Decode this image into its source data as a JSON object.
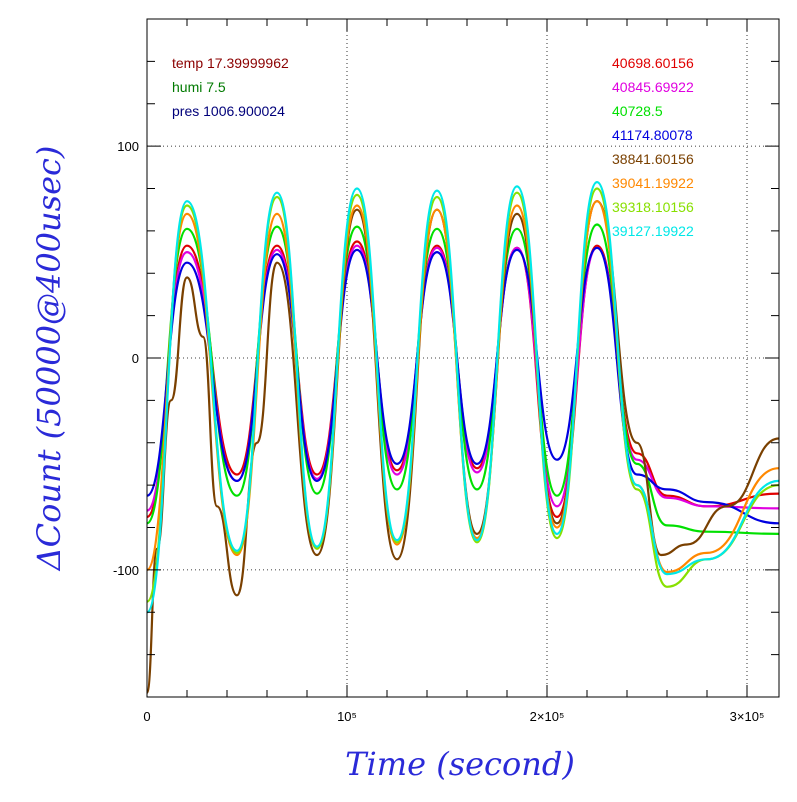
{
  "chart_data": {
    "type": "line",
    "xlabel": "Time (second)",
    "ylabel": "ΔCount (50000@400usec)",
    "xlim": [
      0,
      316000
    ],
    "ylim": [
      -160,
      160
    ],
    "xticks": [
      {
        "value": 0,
        "label": "0"
      },
      {
        "value": 100000,
        "label": "10⁵"
      },
      {
        "value": 200000,
        "label": "2×10⁵"
      },
      {
        "value": 300000,
        "label": "3×10⁵"
      }
    ],
    "yticks": [
      {
        "value": 100,
        "label": "100"
      },
      {
        "value": 0,
        "label": "0"
      },
      {
        "value": -100,
        "label": "-100"
      }
    ],
    "grid": "dotted at labeled ticks",
    "env_legend": [
      {
        "label": "temp 17.39999962",
        "color": "#8b0000"
      },
      {
        "label": "humi 7.5",
        "color": "#007a00"
      },
      {
        "label": "pres 1006.900024",
        "color": "#00007a"
      }
    ],
    "series": [
      {
        "name": "40698.60156",
        "color": "#e00000",
        "x": [
          0,
          20000,
          45000,
          65000,
          85000,
          105000,
          125000,
          145000,
          165000,
          185000,
          205000,
          225000,
          245000,
          260000,
          280000,
          316000
        ],
        "y": [
          -75,
          53,
          -55,
          53,
          -55,
          55,
          -53,
          53,
          -52,
          52,
          -75,
          53,
          -45,
          -65,
          -70,
          -64
        ]
      },
      {
        "name": "40845.69922",
        "color": "#e000e0",
        "x": [
          0,
          20000,
          45000,
          65000,
          85000,
          105000,
          125000,
          145000,
          165000,
          185000,
          205000,
          225000,
          245000,
          260000,
          280000,
          316000
        ],
        "y": [
          -72,
          50,
          -58,
          51,
          -57,
          53,
          -55,
          52,
          -54,
          52,
          -70,
          52,
          -48,
          -66,
          -70,
          -71
        ]
      },
      {
        "name": "40728.5",
        "color": "#00e000",
        "x": [
          0,
          20000,
          45000,
          65000,
          85000,
          105000,
          125000,
          145000,
          165000,
          185000,
          205000,
          225000,
          245000,
          260000,
          280000,
          316000
        ],
        "y": [
          -78,
          61,
          -65,
          62,
          -64,
          62,
          -62,
          61,
          -62,
          61,
          -65,
          63,
          -50,
          -79,
          -82,
          -83
        ]
      },
      {
        "name": "41174.80078",
        "color": "#0000e0",
        "x": [
          0,
          20000,
          45000,
          65000,
          85000,
          105000,
          125000,
          145000,
          165000,
          185000,
          205000,
          225000,
          245000,
          260000,
          280000,
          316000
        ],
        "y": [
          -65,
          45,
          -58,
          49,
          -58,
          51,
          -50,
          50,
          -50,
          51,
          -48,
          52,
          -55,
          -62,
          -68,
          -78
        ]
      },
      {
        "name": "38841.60156",
        "color": "#7a4000",
        "x": [
          0,
          5000,
          12000,
          20000,
          28000,
          35000,
          45000,
          55000,
          65000,
          85000,
          105000,
          125000,
          145000,
          165000,
          185000,
          205000,
          225000,
          245000,
          257000,
          270000,
          290000,
          316000
        ],
        "y": [
          -158,
          -90,
          -20,
          38,
          10,
          -70,
          -112,
          -40,
          45,
          -93,
          70,
          -95,
          70,
          -83,
          68,
          -78,
          74,
          -40,
          -93,
          -88,
          -70,
          -38
        ]
      },
      {
        "name": "39041.19922",
        "color": "#ff8800",
        "x": [
          0,
          20000,
          45000,
          65000,
          85000,
          105000,
          125000,
          145000,
          165000,
          185000,
          205000,
          225000,
          245000,
          260000,
          280000,
          316000
        ],
        "y": [
          -100,
          68,
          -93,
          68,
          -90,
          72,
          -88,
          70,
          -85,
          72,
          -80,
          74,
          -60,
          -101,
          -92,
          -52
        ]
      },
      {
        "name": "39318.10156",
        "color": "#88e000",
        "x": [
          0,
          20000,
          45000,
          65000,
          85000,
          105000,
          125000,
          145000,
          165000,
          185000,
          205000,
          225000,
          245000,
          260000,
          280000,
          316000
        ],
        "y": [
          -115,
          72,
          -92,
          76,
          -90,
          77,
          -87,
          76,
          -87,
          78,
          -85,
          80,
          -62,
          -108,
          -95,
          -60
        ]
      },
      {
        "name": "39127.19922",
        "color": "#00e8e8",
        "x": [
          0,
          20000,
          45000,
          65000,
          85000,
          105000,
          125000,
          145000,
          165000,
          185000,
          205000,
          225000,
          245000,
          260000,
          280000,
          316000
        ],
        "y": [
          -120,
          74,
          -91,
          78,
          -89,
          80,
          -86,
          79,
          -86,
          81,
          -83,
          83,
          -60,
          -102,
          -95,
          -58
        ]
      }
    ]
  }
}
